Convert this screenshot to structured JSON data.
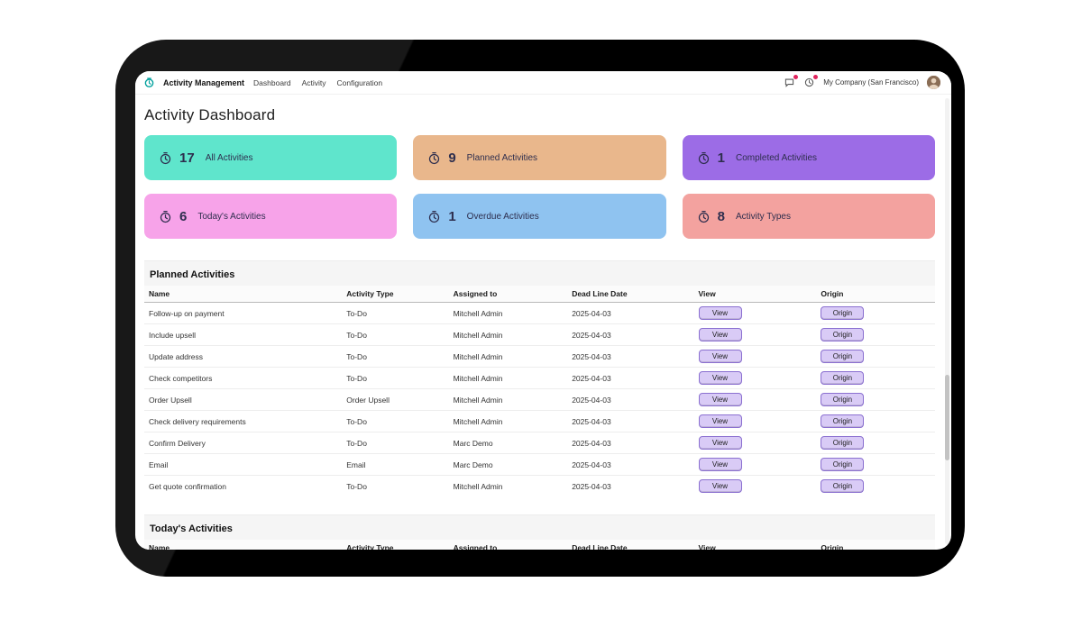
{
  "navbar": {
    "app_name": "Activity Management",
    "menu": [
      "Dashboard",
      "Activity",
      "Configuration"
    ],
    "icons": [
      "messages-icon",
      "activities-icon"
    ],
    "company": "My Company (San Francisco)"
  },
  "page": {
    "title": "Activity Dashboard"
  },
  "cards": [
    {
      "count": "17",
      "label": "All Activities",
      "color": "#5fe5cc"
    },
    {
      "count": "9",
      "label": "Planned Activities",
      "color": "#e9b78c"
    },
    {
      "count": "1",
      "label": "Completed Activities",
      "color": "#9c6ce6"
    },
    {
      "count": "6",
      "label": "Today's Activities",
      "color": "#f7a3e9"
    },
    {
      "count": "1",
      "label": "Overdue Activities",
      "color": "#8fc3f0"
    },
    {
      "count": "8",
      "label": "Activity Types",
      "color": "#f3a29f"
    }
  ],
  "planned": {
    "title": "Planned Activities",
    "columns": [
      "Name",
      "Activity Type",
      "Assigned to",
      "Dead Line Date",
      "View",
      "Origin"
    ],
    "view_label": "View",
    "origin_label": "Origin",
    "rows": [
      {
        "name": "Follow-up on payment",
        "type": "To-Do",
        "assigned": "Mitchell Admin",
        "deadline": "2025-04-03"
      },
      {
        "name": "Include upsell",
        "type": "To-Do",
        "assigned": "Mitchell Admin",
        "deadline": "2025-04-03"
      },
      {
        "name": "Update address",
        "type": "To-Do",
        "assigned": "Mitchell Admin",
        "deadline": "2025-04-03"
      },
      {
        "name": "Check competitors",
        "type": "To-Do",
        "assigned": "Mitchell Admin",
        "deadline": "2025-04-03"
      },
      {
        "name": "Order Upsell",
        "type": "Order Upsell",
        "assigned": "Mitchell Admin",
        "deadline": "2025-04-03"
      },
      {
        "name": "Check delivery requirements",
        "type": "To-Do",
        "assigned": "Mitchell Admin",
        "deadline": "2025-04-03"
      },
      {
        "name": "Confirm Delivery",
        "type": "To-Do",
        "assigned": "Marc Demo",
        "deadline": "2025-04-03"
      },
      {
        "name": "Email",
        "type": "Email",
        "assigned": "Marc Demo",
        "deadline": "2025-04-03"
      },
      {
        "name": "Get quote confirmation",
        "type": "To-Do",
        "assigned": "Mitchell Admin",
        "deadline": "2025-04-03"
      }
    ]
  },
  "today": {
    "title": "Today's Activities",
    "columns": [
      "Name",
      "Activity Type",
      "Assigned to",
      "Dead Line Date",
      "View",
      "Origin"
    ]
  }
}
